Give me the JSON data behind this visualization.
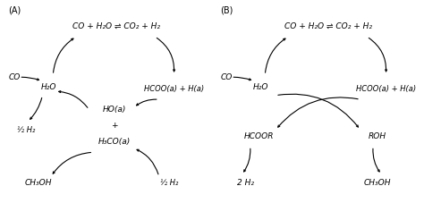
{
  "bg_color": "#ffffff",
  "text_color": "#000000",
  "panel_A_label": "(A)",
  "panel_B_label": "(B)",
  "font_size": 6.5,
  "arrow_color": "#000000",
  "panel_A": {
    "top_eq": "CO + H₂O ⇌ CO₂ + H₂",
    "left_co": "CO",
    "left_h2o": "H₂O",
    "right_hcoo": "HCOO(a) + H(a)",
    "mid_ho": "HO(a)",
    "mid_plus": "+",
    "mid_h3co": "H₃CO(a)",
    "left_half_h2": "½ H₂",
    "bottom_ch3oh": "CH₃OH",
    "bottom_half_h2": "½ H₂"
  },
  "panel_B": {
    "top_eq": "CO + H₂O ⇌ CO₂ + H₂",
    "left_co": "CO",
    "left_h2o": "H₂O",
    "right_hcoo_a": "HCOO(a) + H(a)",
    "left_hcoor": "HCOOR",
    "right_roh": "ROH",
    "bottom_left": "2 H₂",
    "bottom_right": "CH₃OH"
  }
}
